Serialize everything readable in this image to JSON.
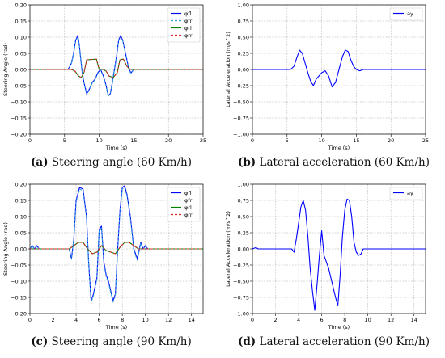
{
  "chart_data": [
    {
      "type": "line",
      "caption_letter": "(a)",
      "caption_text": " Steering angle (60 Km/h)",
      "xlabel": "Time (s)",
      "ylabel": "Steering Angle (rad)",
      "xlim": [
        0,
        25
      ],
      "ylim": [
        -0.2,
        0.2
      ],
      "xticks": [
        0,
        5,
        10,
        15,
        20,
        25
      ],
      "yticks": [
        -0.2,
        -0.15,
        -0.1,
        -0.05,
        0.0,
        0.05,
        0.1,
        0.15,
        0.2
      ],
      "ytick_labels": [
        "−0.20",
        "−0.15",
        "−0.10",
        "−0.05",
        "0.00",
        "0.05",
        "0.10",
        "0.15",
        "0.20"
      ],
      "grid": true,
      "legend": "top-right",
      "series": [
        {
          "name": "φfl",
          "color": "#0000ff",
          "dash": "solid",
          "x": [
            0,
            5.5,
            6.0,
            6.3,
            6.6,
            6.9,
            7.1,
            7.3,
            7.5,
            7.8,
            8.2,
            8.6,
            9.0,
            9.4,
            9.8,
            10.2,
            10.6,
            11.0,
            11.3,
            11.6,
            11.9,
            12.2,
            12.5,
            12.8,
            13.1,
            13.4,
            13.7,
            14.0,
            14.3,
            14.6,
            15.0,
            16,
            25
          ],
          "y": [
            0,
            0,
            0.02,
            0.05,
            0.09,
            0.105,
            0.08,
            0.04,
            0.0,
            -0.04,
            -0.075,
            -0.06,
            -0.04,
            -0.03,
            -0.01,
            0.0,
            -0.02,
            -0.05,
            -0.08,
            -0.075,
            -0.04,
            0.0,
            0.04,
            0.09,
            0.105,
            0.09,
            0.06,
            0.03,
            0.0,
            -0.01,
            0,
            0,
            0
          ]
        },
        {
          "name": "φfr",
          "color": "#2ca0dc",
          "dash": "dashed",
          "x": [
            0,
            5.5,
            6.0,
            6.3,
            6.6,
            6.9,
            7.1,
            7.3,
            7.5,
            7.8,
            8.2,
            8.6,
            9.0,
            9.4,
            9.8,
            10.2,
            10.6,
            11.0,
            11.3,
            11.6,
            11.9,
            12.2,
            12.5,
            12.8,
            13.1,
            13.4,
            13.7,
            14.0,
            14.3,
            14.6,
            15.0,
            16,
            25
          ],
          "y": [
            0,
            0,
            0.018,
            0.048,
            0.088,
            0.1,
            0.078,
            0.038,
            -0.002,
            -0.042,
            -0.078,
            -0.062,
            -0.042,
            -0.032,
            -0.012,
            -0.002,
            -0.022,
            -0.052,
            -0.082,
            -0.077,
            -0.042,
            -0.002,
            0.038,
            0.088,
            0.1,
            0.088,
            0.058,
            0.028,
            -0.002,
            -0.012,
            0,
            0,
            0
          ]
        },
        {
          "name": "φrl",
          "color": "#008000",
          "dash": "solid",
          "x": [
            0,
            6.0,
            6.5,
            7.0,
            7.4,
            7.8,
            8.2,
            9.6,
            10.0,
            10.6,
            11.0,
            11.4,
            12.0,
            12.6,
            13.0,
            13.5,
            14.0,
            14.5,
            15.5,
            25
          ],
          "y": [
            0,
            0,
            -0.005,
            -0.02,
            -0.025,
            -0.01,
            0.03,
            0.032,
            0.0,
            0.0,
            -0.005,
            -0.02,
            -0.025,
            -0.01,
            0.03,
            0.032,
            0.01,
            0.0,
            0,
            0
          ]
        },
        {
          "name": "φrr",
          "color": "#d62728",
          "dash": "dashed",
          "x": [
            0,
            6.0,
            6.5,
            7.0,
            7.4,
            7.8,
            8.2,
            9.6,
            10.0,
            10.6,
            11.0,
            11.4,
            12.0,
            12.6,
            13.0,
            13.5,
            14.0,
            14.5,
            15.5,
            25
          ],
          "y": [
            0,
            0,
            -0.005,
            -0.02,
            -0.025,
            -0.01,
            0.03,
            0.032,
            0.0,
            0.0,
            -0.005,
            -0.02,
            -0.025,
            -0.01,
            0.03,
            0.032,
            0.01,
            0.0,
            0,
            0
          ]
        }
      ]
    },
    {
      "type": "line",
      "caption_letter": "(b)",
      "caption_text": " Lateral acceleration (60 Km/h)",
      "xlabel": "Time (s)",
      "ylabel": "Lateral Acceleration (m/s^2)",
      "xlim": [
        0,
        25
      ],
      "ylim": [
        -1.0,
        1.0
      ],
      "xticks": [
        0,
        5,
        10,
        15,
        20,
        25
      ],
      "yticks": [
        -1.0,
        -0.75,
        -0.5,
        -0.25,
        0.0,
        0.25,
        0.5,
        0.75,
        1.0
      ],
      "ytick_labels": [
        "−1.00",
        "−0.75",
        "−0.50",
        "−0.25",
        "0.00",
        "0.25",
        "0.50",
        "0.75",
        "1.00"
      ],
      "grid": true,
      "legend": "top-right",
      "series": [
        {
          "name": "ay",
          "color": "#0000ff",
          "dash": "solid",
          "x": [
            0,
            5.5,
            6.0,
            6.4,
            6.8,
            7.2,
            7.6,
            8.0,
            8.4,
            8.8,
            9.2,
            9.6,
            10.0,
            10.5,
            11.0,
            11.5,
            12.0,
            12.5,
            13.0,
            13.4,
            13.8,
            14.2,
            14.6,
            15.0,
            15.5,
            16.0,
            25
          ],
          "y": [
            0,
            0,
            0.05,
            0.18,
            0.3,
            0.25,
            0.1,
            -0.05,
            -0.18,
            -0.25,
            -0.15,
            -0.1,
            -0.05,
            -0.02,
            -0.1,
            -0.27,
            -0.2,
            0.0,
            0.2,
            0.3,
            0.28,
            0.15,
            0.05,
            0.0,
            -0.02,
            0.0,
            0
          ]
        }
      ]
    },
    {
      "type": "line",
      "caption_letter": "(c)",
      "caption_text": " Steering angle (90 Km/h)",
      "xlabel": "Time (s)",
      "ylabel": "Steering Angle (rad)",
      "xlim": [
        0,
        15
      ],
      "ylim": [
        -0.2,
        0.2
      ],
      "xticks": [
        0,
        2,
        4,
        6,
        8,
        10,
        12,
        14
      ],
      "yticks": [
        -0.2,
        -0.15,
        -0.1,
        -0.05,
        0.0,
        0.05,
        0.1,
        0.15,
        0.2
      ],
      "ytick_labels": [
        "−0.20",
        "−0.15",
        "−0.10",
        "−0.05",
        "0.00",
        "0.05",
        "0.10",
        "0.15",
        "0.20"
      ],
      "grid": true,
      "legend": "top-right",
      "series": [
        {
          "name": "φfl",
          "color": "#0000ff",
          "dash": "solid",
          "x": [
            0,
            0.2,
            0.4,
            0.6,
            0.8,
            3.4,
            3.6,
            3.8,
            4.0,
            4.3,
            4.6,
            4.9,
            5.1,
            5.3,
            5.5,
            5.8,
            6.0,
            6.2,
            6.4,
            6.6,
            6.8,
            7.0,
            7.2,
            7.4,
            7.6,
            7.8,
            8.0,
            8.2,
            8.4,
            8.7,
            9.0,
            9.3,
            9.6,
            9.8,
            10.0,
            10.2,
            15
          ],
          "y": [
            0,
            0.01,
            0.0,
            0.01,
            0.0,
            0,
            -0.03,
            0.03,
            0.15,
            0.19,
            0.185,
            0.1,
            -0.05,
            -0.16,
            -0.14,
            -0.09,
            0.06,
            0.07,
            -0.04,
            -0.08,
            -0.1,
            -0.13,
            -0.16,
            -0.14,
            0.0,
            0.12,
            0.19,
            0.195,
            0.17,
            0.1,
            0.0,
            -0.03,
            0.02,
            0.0,
            0.01,
            0.0,
            0
          ]
        },
        {
          "name": "φfr",
          "color": "#2ca0dc",
          "dash": "dashed",
          "x": [
            0,
            0.2,
            0.4,
            0.6,
            0.8,
            3.4,
            3.6,
            3.8,
            4.0,
            4.3,
            4.6,
            4.9,
            5.1,
            5.3,
            5.5,
            5.8,
            6.0,
            6.2,
            6.4,
            6.6,
            6.8,
            7.0,
            7.2,
            7.4,
            7.6,
            7.8,
            8.0,
            8.2,
            8.4,
            8.7,
            9.0,
            9.3,
            9.6,
            9.8,
            10.0,
            10.2,
            15
          ],
          "y": [
            0,
            0.008,
            0.0,
            0.008,
            0.0,
            0,
            -0.032,
            0.028,
            0.145,
            0.185,
            0.18,
            0.095,
            -0.055,
            -0.165,
            -0.145,
            -0.095,
            0.055,
            0.065,
            -0.045,
            -0.085,
            -0.105,
            -0.135,
            -0.165,
            -0.145,
            -0.005,
            0.115,
            0.185,
            0.19,
            0.165,
            0.095,
            -0.005,
            -0.035,
            0.018,
            0.0,
            0.008,
            0.0,
            0
          ]
        },
        {
          "name": "φrl",
          "color": "#008000",
          "dash": "solid",
          "x": [
            0,
            3.4,
            3.8,
            4.2,
            4.6,
            5.0,
            5.4,
            5.8,
            6.2,
            6.6,
            7.0,
            7.4,
            7.8,
            8.2,
            8.6,
            9.0,
            9.4,
            10.0,
            15
          ],
          "y": [
            0,
            0,
            0.01,
            0.02,
            0.02,
            0.0,
            -0.015,
            -0.01,
            0.01,
            -0.005,
            -0.01,
            -0.015,
            0.005,
            0.02,
            0.02,
            0.01,
            0.0,
            0,
            0
          ]
        },
        {
          "name": "φrr",
          "color": "#d62728",
          "dash": "dashed",
          "x": [
            0,
            3.4,
            3.8,
            4.2,
            4.6,
            5.0,
            5.4,
            5.8,
            6.2,
            6.6,
            7.0,
            7.4,
            7.8,
            8.2,
            8.6,
            9.0,
            9.4,
            10.0,
            15
          ],
          "y": [
            0,
            0,
            0.01,
            0.02,
            0.02,
            0.0,
            -0.015,
            -0.01,
            0.01,
            -0.005,
            -0.01,
            -0.015,
            0.005,
            0.02,
            0.02,
            0.01,
            0.0,
            0,
            0
          ]
        }
      ]
    },
    {
      "type": "line",
      "caption_letter": "(d)",
      "caption_text": " Lateral acceleration (90 Km/h)",
      "xlabel": "Time (s)",
      "ylabel": "Lateral Acceleration (m/s^2)",
      "xlim": [
        0,
        15
      ],
      "ylim": [
        -1.0,
        1.0
      ],
      "xticks": [
        0,
        2,
        4,
        6,
        8,
        10,
        12,
        14
      ],
      "yticks": [
        -1.0,
        -0.75,
        -0.5,
        -0.25,
        0.0,
        0.25,
        0.5,
        0.75,
        1.0
      ],
      "ytick_labels": [
        "−1.00",
        "−0.75",
        "−0.50",
        "−0.25",
        "0.00",
        "0.25",
        "0.50",
        "0.75",
        "1.00"
      ],
      "grid": true,
      "legend": "top-right",
      "series": [
        {
          "name": "ay",
          "color": "#0000ff",
          "dash": "solid",
          "x": [
            0,
            0.3,
            0.5,
            0.7,
            3.4,
            3.6,
            3.8,
            4.0,
            4.2,
            4.4,
            4.6,
            4.8,
            5.0,
            5.2,
            5.4,
            5.6,
            5.8,
            6.0,
            6.2,
            6.4,
            6.6,
            6.8,
            7.0,
            7.2,
            7.4,
            7.6,
            7.8,
            8.0,
            8.2,
            8.4,
            8.6,
            8.8,
            9.0,
            9.2,
            9.4,
            9.6,
            10.0,
            15
          ],
          "y": [
            0,
            0.02,
            0.0,
            0.0,
            0,
            -0.05,
            0.15,
            0.4,
            0.65,
            0.75,
            0.6,
            0.2,
            -0.3,
            -0.65,
            -0.95,
            -0.55,
            -0.1,
            0.28,
            -0.1,
            -0.2,
            -0.3,
            -0.45,
            -0.6,
            -0.75,
            -0.88,
            -0.4,
            0.2,
            0.6,
            0.77,
            0.75,
            0.5,
            0.1,
            -0.05,
            -0.1,
            -0.08,
            0.0,
            0.0,
            0
          ]
        }
      ]
    }
  ]
}
